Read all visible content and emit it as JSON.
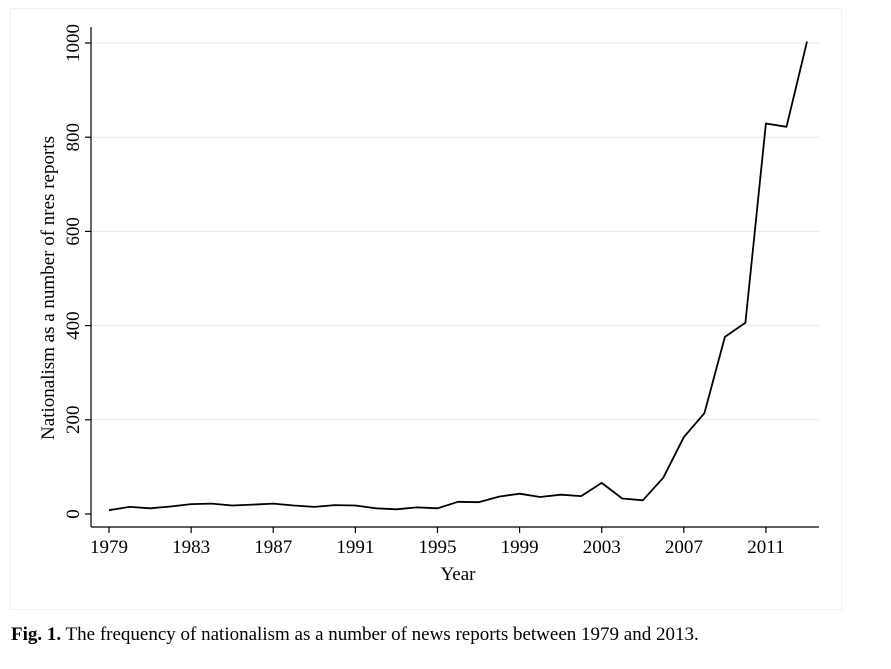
{
  "chart_data": {
    "type": "line",
    "xlabel": "Year",
    "ylabel": "Nationalism as a number of nres reports",
    "xlim": [
      1979,
      2013
    ],
    "ylim": [
      0,
      1000
    ],
    "x_ticks": [
      "1979",
      "1983",
      "1987",
      "1991",
      "1995",
      "1999",
      "2003",
      "2007",
      "2011"
    ],
    "y_ticks": [
      "0",
      "200",
      "400",
      "600",
      "800",
      "1000"
    ],
    "grid": "horizontal",
    "series_color": "#000000",
    "x": [
      1979,
      1980,
      1981,
      1982,
      1983,
      1984,
      1985,
      1986,
      1987,
      1988,
      1989,
      1990,
      1991,
      1992,
      1993,
      1994,
      1995,
      1996,
      1997,
      1998,
      1999,
      2000,
      2001,
      2002,
      2003,
      2004,
      2005,
      2006,
      2007,
      2008,
      2009,
      2010,
      2011,
      2012,
      2013
    ],
    "values": [
      8,
      15,
      12,
      16,
      21,
      22,
      18,
      20,
      22,
      18,
      15,
      19,
      18,
      12,
      10,
      14,
      12,
      26,
      25,
      37,
      43,
      36,
      41,
      38,
      66,
      33,
      29,
      77,
      163,
      214,
      376,
      406,
      829,
      822,
      1003
    ]
  },
  "caption": {
    "label": "Fig. 1.",
    "text": " The frequency of nationalism as a number of news reports between 1979 and 2013."
  }
}
